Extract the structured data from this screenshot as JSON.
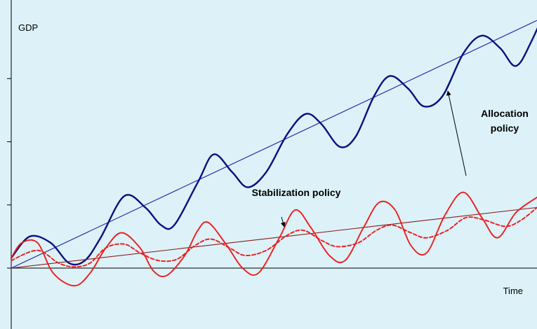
{
  "chart_data": {
    "type": "line",
    "title": "",
    "ylabel": "GDP",
    "xlabel": "Time",
    "grid": false,
    "legend": "none",
    "xlim": [
      0,
      100
    ],
    "ylim": [
      -10,
      100
    ],
    "x_ticks": [],
    "y_ticks": [
      0,
      25,
      50,
      75
    ],
    "series": [
      {
        "role": "high-growth-trend",
        "color": "#1f1fb0",
        "line_style": "solid",
        "line_weight": "thin",
        "points": [
          [
            0,
            0
          ],
          [
            100,
            98
          ]
        ]
      },
      {
        "role": "high-growth-cycle",
        "color": "#0d0d80",
        "line_style": "solid",
        "line_weight": "thick",
        "points": [
          [
            0,
            4
          ],
          [
            3.5,
            12.5
          ],
          [
            7.5,
            10
          ],
          [
            11,
            2
          ],
          [
            14,
            3
          ],
          [
            17,
            12
          ],
          [
            21.5,
            28.5
          ],
          [
            25.5,
            24
          ],
          [
            28.5,
            17
          ],
          [
            31,
            17
          ],
          [
            35.5,
            34
          ],
          [
            38.5,
            45
          ],
          [
            42,
            38
          ],
          [
            45,
            32
          ],
          [
            48.5,
            38
          ],
          [
            52.5,
            53
          ],
          [
            56,
            61
          ],
          [
            59,
            57
          ],
          [
            62.5,
            48
          ],
          [
            65.5,
            52
          ],
          [
            69,
            68
          ],
          [
            72,
            76
          ],
          [
            75.5,
            71
          ],
          [
            78.5,
            64
          ],
          [
            82,
            68
          ],
          [
            86,
            85
          ],
          [
            89.5,
            92
          ],
          [
            93,
            87
          ],
          [
            96,
            80
          ],
          [
            99,
            90
          ],
          [
            103,
            109
          ]
        ]
      },
      {
        "role": "low-growth-trend",
        "color": "#8b1a1a",
        "line_style": "solid",
        "line_weight": "thin",
        "points": [
          [
            0,
            0
          ],
          [
            100,
            24
          ]
        ]
      },
      {
        "role": "low-growth-cycle-large",
        "color": "#ee1c1c",
        "line_style": "solid",
        "line_weight": "medium",
        "points": [
          [
            0,
            4
          ],
          [
            2,
            10
          ],
          [
            5,
            10
          ],
          [
            8,
            -2
          ],
          [
            12,
            -7
          ],
          [
            15,
            -2
          ],
          [
            18,
            8
          ],
          [
            21,
            14
          ],
          [
            24.5,
            8
          ],
          [
            27,
            -1
          ],
          [
            29.5,
            -3
          ],
          [
            33,
            5
          ],
          [
            35.5,
            15
          ],
          [
            37.5,
            18
          ],
          [
            41,
            9
          ],
          [
            44,
            0
          ],
          [
            47,
            -2
          ],
          [
            51,
            12
          ],
          [
            54,
            23
          ],
          [
            57,
            16
          ],
          [
            60.5,
            5
          ],
          [
            63.5,
            3
          ],
          [
            67,
            16
          ],
          [
            70,
            26
          ],
          [
            73,
            23
          ],
          [
            76,
            9
          ],
          [
            79,
            6
          ],
          [
            82.5,
            21
          ],
          [
            86,
            30
          ],
          [
            89.5,
            20
          ],
          [
            92.5,
            12
          ],
          [
            96,
            22
          ],
          [
            100,
            28
          ]
        ]
      },
      {
        "role": "low-growth-cycle-damped",
        "color": "#ee1c1c",
        "line_style": "dashed",
        "line_weight": "medium",
        "points": [
          [
            0,
            3
          ],
          [
            5,
            7
          ],
          [
            9,
            2
          ],
          [
            12,
            0.5
          ],
          [
            15,
            2
          ],
          [
            18,
            8
          ],
          [
            21.5,
            9.5
          ],
          [
            24.5,
            6
          ],
          [
            28,
            3
          ],
          [
            31.5,
            3.5
          ],
          [
            35,
            9
          ],
          [
            38,
            11.5
          ],
          [
            41.5,
            8
          ],
          [
            44.5,
            5
          ],
          [
            48.5,
            7
          ],
          [
            52.5,
            13
          ],
          [
            55.5,
            15
          ],
          [
            59,
            11
          ],
          [
            62,
            8.5
          ],
          [
            66,
            10
          ],
          [
            69.5,
            15
          ],
          [
            72.5,
            17
          ],
          [
            76,
            14
          ],
          [
            79,
            12
          ],
          [
            83,
            15
          ],
          [
            86.5,
            20
          ],
          [
            90,
            19
          ],
          [
            94,
            16.5
          ],
          [
            97,
            19
          ],
          [
            100,
            24
          ]
        ]
      }
    ],
    "annotations": [
      {
        "text": "Stabilization policy",
        "style": "bold",
        "position": "center",
        "pointer": "arrow-down-to-red-cycle"
      },
      {
        "text": "Allocation",
        "style": "bold",
        "position": "right",
        "pointer": "arrow-up-from-red-trend-to-blue-trend"
      },
      {
        "text": "policy",
        "style": "bold",
        "position": "right"
      }
    ]
  }
}
